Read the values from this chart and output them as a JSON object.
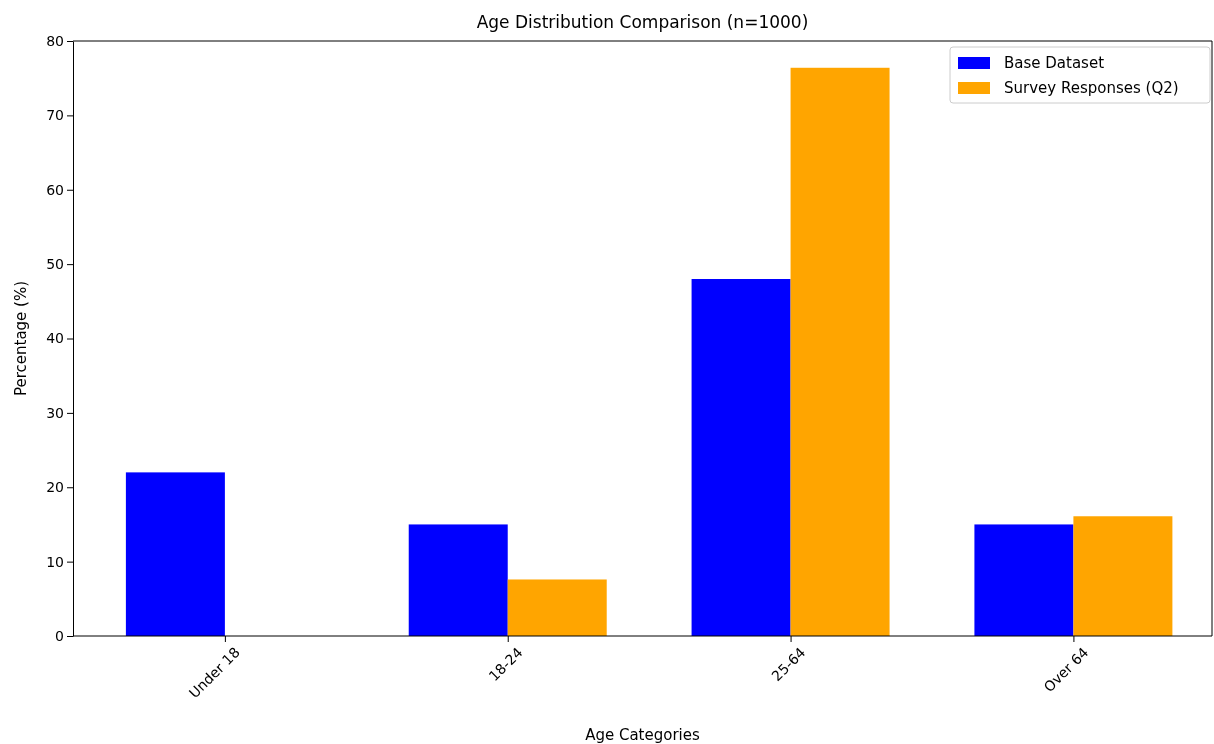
{
  "chart_data": {
    "type": "bar",
    "title": "Age Distribution Comparison (n=1000)",
    "xlabel": "Age Categories",
    "ylabel": "Percentage (%)",
    "categories": [
      "Under 18",
      "18-24",
      "25-64",
      "Over 64"
    ],
    "series": [
      {
        "name": "Base Dataset",
        "color": "#0000ff",
        "values": [
          22,
          15,
          48,
          15
        ]
      },
      {
        "name": "Survey Responses (Q2)",
        "color": "#ffa500",
        "values": [
          0,
          7.6,
          76.4,
          16.1
        ]
      }
    ],
    "ylim": [
      0,
      80
    ],
    "yticks": [
      0,
      10,
      20,
      30,
      40,
      50,
      60,
      70,
      80
    ],
    "grid": false,
    "legend": "top right"
  }
}
